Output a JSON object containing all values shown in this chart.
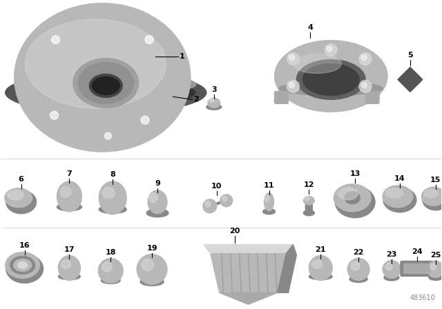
{
  "diagram_number": "483610",
  "background_color": "#ffffff",
  "gc": "#b8b8b8",
  "gd": "#888888",
  "gl": "#d8d8d8",
  "gdk": "#555555",
  "label_fontsize": 8
}
